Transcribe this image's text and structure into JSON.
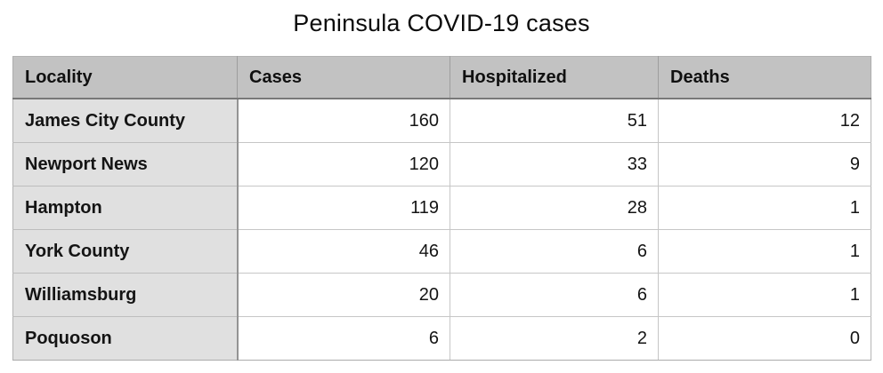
{
  "title": "Peninsula COVID-19 cases",
  "chart_data": {
    "type": "table",
    "title": "Peninsula COVID-19 cases",
    "columns": [
      "Locality",
      "Cases",
      "Hospitalized",
      "Deaths"
    ],
    "rows": [
      [
        "James City County",
        160,
        51,
        12
      ],
      [
        "Newport News",
        120,
        33,
        9
      ],
      [
        "Hampton",
        119,
        28,
        1
      ],
      [
        "York County",
        46,
        6,
        1
      ],
      [
        "Williamsburg",
        20,
        6,
        1
      ],
      [
        "Poquoson",
        6,
        2,
        0
      ]
    ]
  },
  "colors": {
    "page_background": "#ffffff",
    "header_background": "#c2c2c2",
    "row_label_background": "#e0e0e0",
    "grid_line": "#c6c6c6",
    "header_bottom_rule": "#787878",
    "label_column_rule": "#949494",
    "text": "#101010"
  }
}
